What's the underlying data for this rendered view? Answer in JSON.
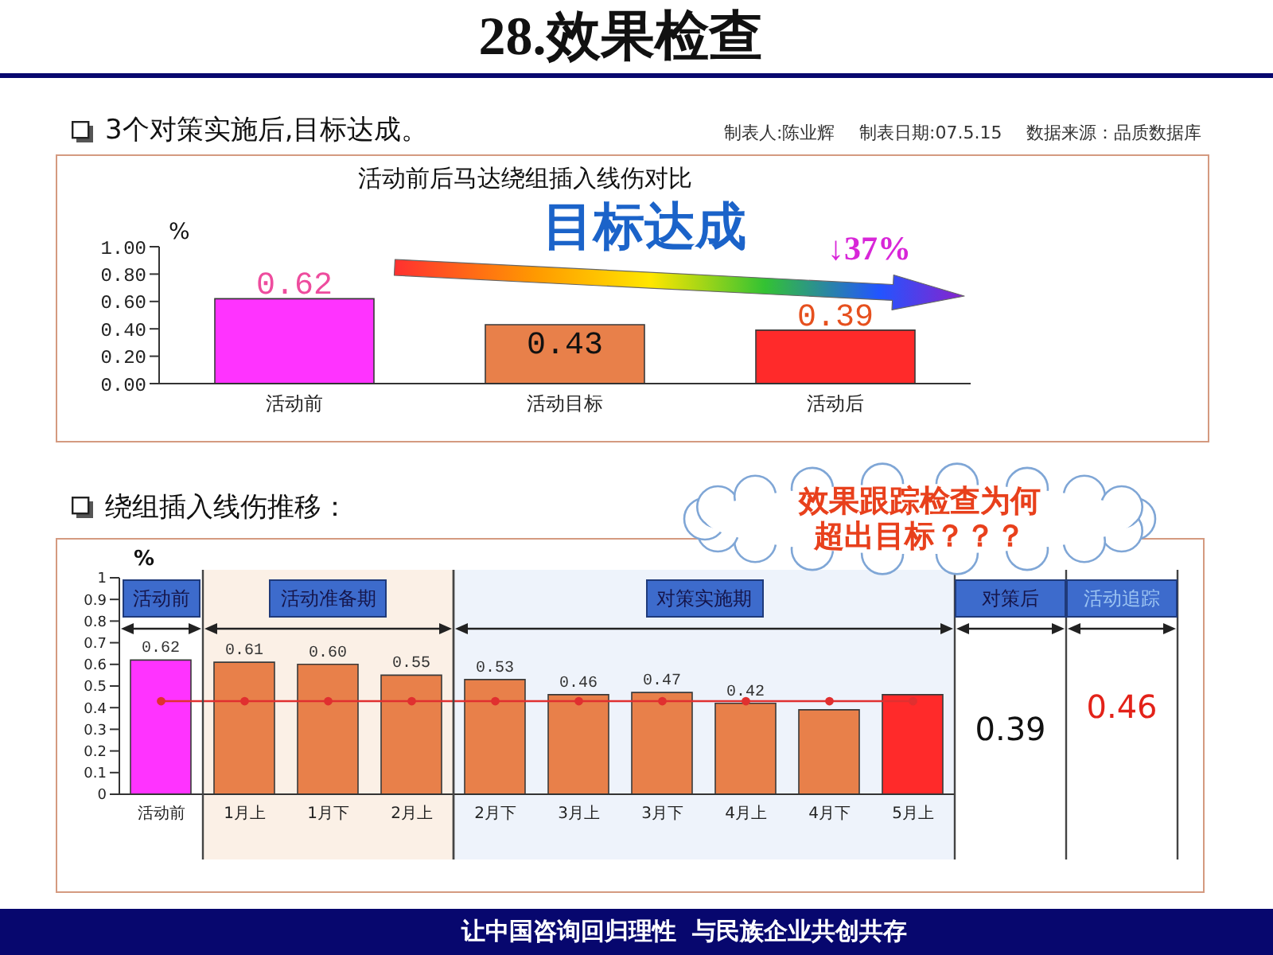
{
  "chart_data": [
    {
      "type": "bar",
      "title": "活动前后马达绕组插入线伤对比",
      "ylabel": "%",
      "annotations": [
        "28.效果检查",
        "3个对策实施后,目标达成。",
        "制表人:陈业辉",
        "制表日期:07.5.15",
        "数据来源：品质数据库",
        "目标达成",
        "↓37%"
      ],
      "categories": [
        "活动前",
        "活动目标",
        "活动后"
      ],
      "values": [
        0.62,
        0.43,
        0.39
      ],
      "colors": [
        "#ff33ff",
        "#e8804a",
        "#ff2a2a"
      ],
      "data_labels": true,
      "ylim": [
        0,
        1
      ],
      "yticks": [
        {
          "value": 0,
          "label": "0.00"
        },
        {
          "value": 0.2,
          "label": "0.20"
        },
        {
          "value": 0.4,
          "label": "0.40"
        },
        {
          "value": 0.6,
          "label": "0.60"
        },
        {
          "value": 0.8,
          "label": "0.80"
        },
        {
          "value": 1,
          "label": "1.00"
        }
      ]
    },
    {
      "type": "bar",
      "title": "绕组插入线伤推移：",
      "ylabel": "%",
      "categories": [
        "活动前",
        "1月上",
        "1月下",
        "2月上",
        "2月下",
        "3月上",
        "3月下",
        "4月上",
        "4月下",
        "5月上"
      ],
      "series": [
        {
          "type": "bar",
          "values": [
            0.62,
            0.61,
            0.6,
            0.55,
            0.53,
            0.46,
            0.47,
            0.42,
            0.39,
            0.46
          ],
          "colors": [
            "#ff33ff",
            "#e8804a",
            "#e8804a",
            "#e8804a",
            "#e8804a",
            "#e8804a",
            "#e8804a",
            "#e8804a",
            "#e8804a",
            "#ff2a2a"
          ],
          "value_labels": [
            "0.62",
            "0.61",
            "0.60",
            "0.55",
            "0.53",
            "0.46",
            "0.47",
            "0.42",
            null,
            null
          ]
        },
        {
          "type": "line",
          "values": [
            0.43,
            0.43,
            0.43,
            0.43,
            0.43,
            0.43,
            0.43,
            0.43,
            0.43,
            0.43
          ],
          "color": "#e03030",
          "marker": "circle"
        }
      ],
      "ylim": [
        0,
        1
      ],
      "yticks": [
        0,
        0.1,
        0.2,
        0.3,
        0.4,
        0.5,
        0.6,
        0.7,
        0.8,
        0.9,
        1
      ],
      "bands": [
        {
          "axis": "x",
          "from": "1月上",
          "to": "2月上",
          "label": "活动准备期",
          "color": "#fbf0e6"
        },
        {
          "axis": "x",
          "from": "2月下",
          "to": "5月上",
          "label": "对策实施期",
          "color": "#eef3fb"
        }
      ],
      "annotations": [
        "活动前",
        "对策后",
        "0.39",
        "活动追踪",
        "0.46",
        "效果跟踪检查为何超出目标？？？",
        "让中国咨询回归理性  与民族企业共创共存"
      ]
    }
  ]
}
